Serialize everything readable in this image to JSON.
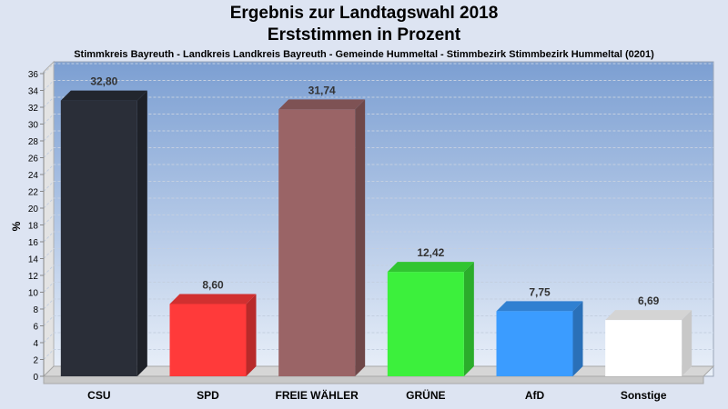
{
  "header": {
    "title_line1": "Ergebnis zur Landtagswahl 2018",
    "title_line2": "Erststimmen in Prozent",
    "subtitle": "Stimmkreis Bayreuth - Landkreis Landkreis Bayreuth - Gemeinde Hummeltal - Stimmbezirk Stimmbezirk Hummeltal (0201)"
  },
  "chart_data": {
    "type": "bar",
    "title": "Ergebnis zur Landtagswahl 2018",
    "subtitle": "Erststimmen in Prozent",
    "xlabel": "",
    "ylabel": "%",
    "ylim": [
      0,
      36
    ],
    "yticks": [
      "0",
      "2",
      "4",
      "6",
      "8",
      "10",
      "12",
      "14",
      "16",
      "18",
      "20",
      "22",
      "24",
      "26",
      "28",
      "30",
      "32",
      "34",
      "36"
    ],
    "grid": true,
    "categories": [
      "CSU",
      "SPD",
      "FREIE WÄHLER",
      "GRÜNE",
      "AfD",
      "Sonstige"
    ],
    "values": [
      32.8,
      8.6,
      31.74,
      12.42,
      7.75,
      6.69
    ],
    "value_labels": [
      "32,80",
      "8,60",
      "31,74",
      "12,42",
      "7,75",
      "6,69"
    ],
    "colors": [
      "#2a2e38",
      "#ff3a3a",
      "#9a6466",
      "#3cf03c",
      "#3b9cff",
      "#ffffff"
    ]
  }
}
